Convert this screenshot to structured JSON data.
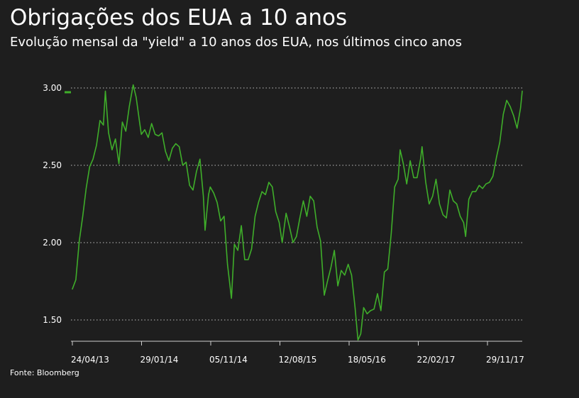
{
  "title": "Obrigações dos EUA a 10 anos",
  "subtitle": "Evolução mensal da \"yield\" a 10 anos dos EUA, nos últimos cinco anos",
  "source": "Fonte: Bloomberg",
  "chart_data": {
    "type": "line",
    "title": "Obrigações dos EUA a 10 anos",
    "subtitle": "Evolução mensal da \"yield\" a 10 anos dos EUA, nos últimos cinco anos",
    "xlabel": "",
    "ylabel": "",
    "ylim": [
      1.35,
      3.07
    ],
    "yticks": [
      1.5,
      2.0,
      2.5,
      3.0
    ],
    "ytick_labels": [
      "1.50",
      "2.00",
      "2.50",
      "3.00"
    ],
    "xticks": [
      "24/04/13",
      "29/01/14",
      "05/11/14",
      "12/08/15",
      "18/05/16",
      "22/02/17",
      "29/11/17"
    ],
    "grid": "horizontal dotted",
    "line_color": "#3fae2a",
    "series": [
      {
        "x": [
          "2013-04-24",
          "2013-05-08",
          "2013-05-22",
          "2013-06-05",
          "2013-06-19",
          "2013-07-03",
          "2013-07-17",
          "2013-07-31",
          "2013-08-14",
          "2013-08-28",
          "2013-09-05",
          "2013-09-18",
          "2013-10-02",
          "2013-10-16",
          "2013-10-30",
          "2013-11-13",
          "2013-11-27",
          "2013-12-11",
          "2013-12-27",
          "2014-01-08",
          "2014-01-22",
          "2014-01-29",
          "2014-02-12",
          "2014-02-26",
          "2014-03-12",
          "2014-03-26",
          "2014-04-09",
          "2014-04-23",
          "2014-05-07",
          "2014-05-21",
          "2014-06-04",
          "2014-06-18",
          "2014-07-02",
          "2014-07-16",
          "2014-07-30",
          "2014-08-13",
          "2014-08-27",
          "2014-09-10",
          "2014-09-24",
          "2014-10-08",
          "2014-10-15",
          "2014-10-29",
          "2014-11-05",
          "2014-11-19",
          "2014-12-03",
          "2014-12-17",
          "2014-12-31",
          "2015-01-14",
          "2015-01-30",
          "2015-02-11",
          "2015-02-25",
          "2015-03-11",
          "2015-03-25",
          "2015-04-08",
          "2015-04-22",
          "2015-05-06",
          "2015-05-20",
          "2015-06-03",
          "2015-06-17",
          "2015-07-01",
          "2015-07-15",
          "2015-07-29",
          "2015-08-12",
          "2015-08-24",
          "2015-09-09",
          "2015-09-23",
          "2015-10-07",
          "2015-10-21",
          "2015-11-04",
          "2015-11-18",
          "2015-12-02",
          "2015-12-16",
          "2015-12-30",
          "2016-01-13",
          "2016-01-27",
          "2016-02-11",
          "2016-02-24",
          "2016-03-09",
          "2016-03-23",
          "2016-04-06",
          "2016-04-20",
          "2016-05-04",
          "2016-05-18",
          "2016-06-01",
          "2016-06-15",
          "2016-06-27",
          "2016-07-08",
          "2016-07-20",
          "2016-08-03",
          "2016-08-17",
          "2016-08-31",
          "2016-09-14",
          "2016-09-28",
          "2016-10-12",
          "2016-10-26",
          "2016-11-09",
          "2016-11-23",
          "2016-12-07",
          "2016-12-15",
          "2016-12-28",
          "2017-01-11",
          "2017-01-25",
          "2017-02-08",
          "2017-02-22",
          "2017-03-08",
          "2017-03-14",
          "2017-03-29",
          "2017-04-12",
          "2017-04-26",
          "2017-05-10",
          "2017-05-24",
          "2017-06-07",
          "2017-06-21",
          "2017-07-05",
          "2017-07-19",
          "2017-08-02",
          "2017-08-16",
          "2017-08-30",
          "2017-09-07",
          "2017-09-20",
          "2017-10-04",
          "2017-10-18",
          "2017-11-01",
          "2017-11-15",
          "2017-11-29",
          "2017-12-13",
          "2017-12-27",
          "2018-01-10",
          "2018-01-24",
          "2018-02-07",
          "2018-02-21",
          "2018-03-07",
          "2018-03-21",
          "2018-04-04",
          "2018-04-18",
          "2018-04-25"
        ],
        "y": [
          1.7,
          1.76,
          2.01,
          2.17,
          2.35,
          2.49,
          2.54,
          2.63,
          2.79,
          2.76,
          2.98,
          2.71,
          2.6,
          2.67,
          2.51,
          2.78,
          2.72,
          2.88,
          3.02,
          2.94,
          2.78,
          2.7,
          2.73,
          2.68,
          2.77,
          2.7,
          2.69,
          2.71,
          2.59,
          2.53,
          2.61,
          2.64,
          2.62,
          2.5,
          2.52,
          2.37,
          2.34,
          2.46,
          2.54,
          2.3,
          2.08,
          2.31,
          2.36,
          2.32,
          2.26,
          2.14,
          2.17,
          1.86,
          1.64,
          1.99,
          1.95,
          2.11,
          1.89,
          1.89,
          1.96,
          2.17,
          2.26,
          2.33,
          2.31,
          2.39,
          2.36,
          2.2,
          2.13,
          2.0,
          2.19,
          2.1,
          2.0,
          2.04,
          2.16,
          2.27,
          2.17,
          2.3,
          2.27,
          2.1,
          2.01,
          1.66,
          1.75,
          1.84,
          1.95,
          1.72,
          1.82,
          1.79,
          1.86,
          1.79,
          1.58,
          1.37,
          1.41,
          1.58,
          1.54,
          1.56,
          1.57,
          1.67,
          1.56,
          1.81,
          1.83,
          2.06,
          2.36,
          2.41,
          2.6,
          2.51,
          2.38,
          2.53,
          2.42,
          2.42,
          2.54,
          2.62,
          2.39,
          2.25,
          2.3,
          2.41,
          2.25,
          2.18,
          2.16,
          2.34,
          2.27,
          2.25,
          2.17,
          2.13,
          2.04,
          2.28,
          2.33,
          2.33,
          2.37,
          2.35,
          2.38,
          2.39,
          2.43,
          2.55,
          2.65,
          2.83,
          2.92,
          2.88,
          2.82,
          2.74,
          2.87,
          2.98
        ]
      }
    ]
  }
}
